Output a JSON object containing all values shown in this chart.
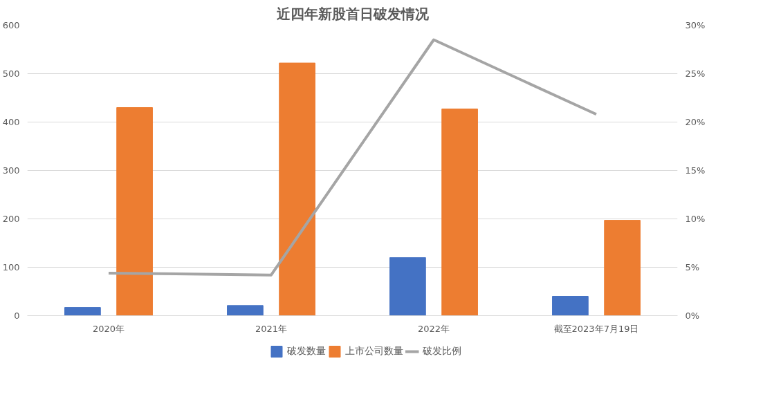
{
  "chart_data": {
    "type": "bar",
    "title": "近四年新股首日破发情况",
    "categories": [
      "2020年",
      "2021年",
      "2022年",
      "截至2023年7月19日"
    ],
    "series": [
      {
        "name": "破发数量",
        "color": "#4472c4",
        "values": [
          17,
          21,
          120,
          40
        ]
      },
      {
        "name": "上市公司数量",
        "color": "#ed7d31",
        "values": [
          430,
          522,
          427,
          197
        ]
      },
      {
        "name": "破发比例",
        "color": "#a5a5a5",
        "type": "line",
        "axis": "y2",
        "values": [
          4.4,
          4.2,
          28.5,
          20.8
        ]
      }
    ],
    "ylim": [
      0,
      600
    ],
    "yticks": [
      0,
      100,
      200,
      300,
      400,
      500,
      600
    ],
    "y2lim": [
      0,
      30
    ],
    "y2ticks": [
      {
        "value": 0,
        "label": "0%"
      },
      {
        "value": 5,
        "label": "5%"
      },
      {
        "value": 10,
        "label": "10%"
      },
      {
        "value": 15,
        "label": "15%"
      },
      {
        "value": 20,
        "label": "20%"
      },
      {
        "value": 25,
        "label": "25%"
      },
      {
        "value": 30,
        "label": "30%"
      }
    ],
    "grid": "y",
    "legend": "bottom",
    "marker": "none",
    "line_style": "solid"
  }
}
